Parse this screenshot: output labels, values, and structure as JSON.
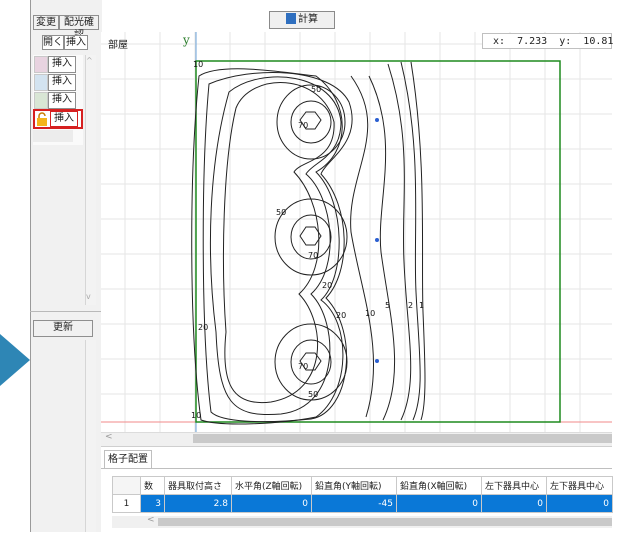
{
  "toolbar": {
    "calc_label": "計算"
  },
  "left_panel": {
    "change_label": "変更",
    "light_check_label": "配光確認",
    "open_label": "開く",
    "insert_label": "挿入",
    "rows": [
      {
        "color": "#e8d3e0",
        "insert_label": "挿入"
      },
      {
        "color": "#d3e3f0",
        "insert_label": "挿入"
      },
      {
        "color": "#d9e6d5",
        "insert_label": "挿入"
      },
      {
        "color": "#f4b51a",
        "insert_label": "挿入"
      }
    ],
    "update_label": "更新"
  },
  "plot": {
    "room_label": "部屋",
    "y_axis_label": "y",
    "coord_readout": "x:  7.233  y:  10.81"
  },
  "contours": {
    "labels": [
      "10",
      "50",
      "70",
      "50",
      "70",
      "20",
      "70",
      "50",
      "20",
      "10",
      "5",
      "2",
      "1",
      "20",
      "10"
    ]
  },
  "bottom": {
    "tab_label": "格子配置",
    "headers": [
      "数",
      "器具取付高さ",
      "水平角(Z軸回転)",
      "鉛直角(Y軸回転)",
      "鉛直角(X軸回転)",
      "左下器具中心",
      "左下器具中心"
    ],
    "row": {
      "index": "1",
      "cells": [
        "3",
        "2.8",
        "0",
        "-45",
        "0",
        "0",
        "0"
      ]
    }
  }
}
